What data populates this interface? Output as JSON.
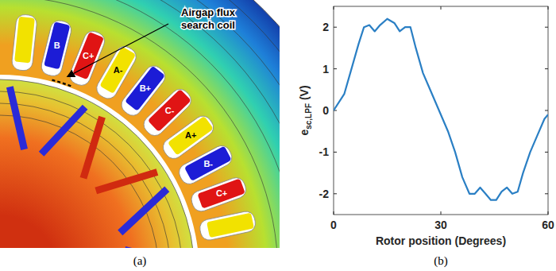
{
  "diagram": {
    "panel_label": "(a)",
    "annotation": "Airgap flux search coil",
    "slots": [
      {
        "label": null,
        "color": "#f2e200"
      },
      {
        "label": "B",
        "color": "#1c1cd6"
      },
      {
        "label": "C+",
        "color": "#e01414"
      },
      {
        "label": "A-",
        "color": "#f2e200"
      },
      {
        "label": "B+",
        "color": "#1c1cd6"
      },
      {
        "label": "C-",
        "color": "#e01414"
      },
      {
        "label": "A+",
        "color": "#f2e200"
      },
      {
        "label": "B-",
        "color": "#1c1cd6"
      },
      {
        "label": "C+",
        "color": "#e01414"
      },
      {
        "label": null,
        "color": "#f2e200"
      }
    ]
  },
  "chart_data": {
    "type": "line",
    "panel_label": "(b)",
    "x_label": "Rotor position (Degrees)",
    "y_label": {
      "main": "e",
      "sub": "sc,LPF",
      "unit": " (V)"
    },
    "x": [
      0,
      3,
      5,
      7,
      8.5,
      10,
      11.5,
      13,
      15,
      17,
      18.5,
      20,
      21.5,
      23,
      25,
      27,
      29,
      30,
      32,
      34,
      36,
      38,
      39.5,
      41,
      42.5,
      44,
      45.5,
      47,
      48.5,
      50,
      51.5,
      53,
      55,
      57,
      59,
      60
    ],
    "values": [
      0,
      0.4,
      1.0,
      1.6,
      2.0,
      2.05,
      1.9,
      2.05,
      2.2,
      2.1,
      1.9,
      2.0,
      2.0,
      1.5,
      0.9,
      0.5,
      0.1,
      -0.1,
      -0.5,
      -1.0,
      -1.6,
      -2.0,
      -2.0,
      -1.85,
      -2.0,
      -2.15,
      -2.15,
      -1.95,
      -1.85,
      -2.0,
      -1.95,
      -1.5,
      -1.0,
      -0.6,
      -0.2,
      -0.1
    ],
    "color": "#2a7fc4",
    "xlim": [
      0,
      60
    ],
    "ylim": [
      -2.5,
      2.5
    ],
    "xticks": [
      0,
      30,
      60
    ],
    "yticks": [
      -2,
      -1,
      0,
      1,
      2
    ]
  }
}
